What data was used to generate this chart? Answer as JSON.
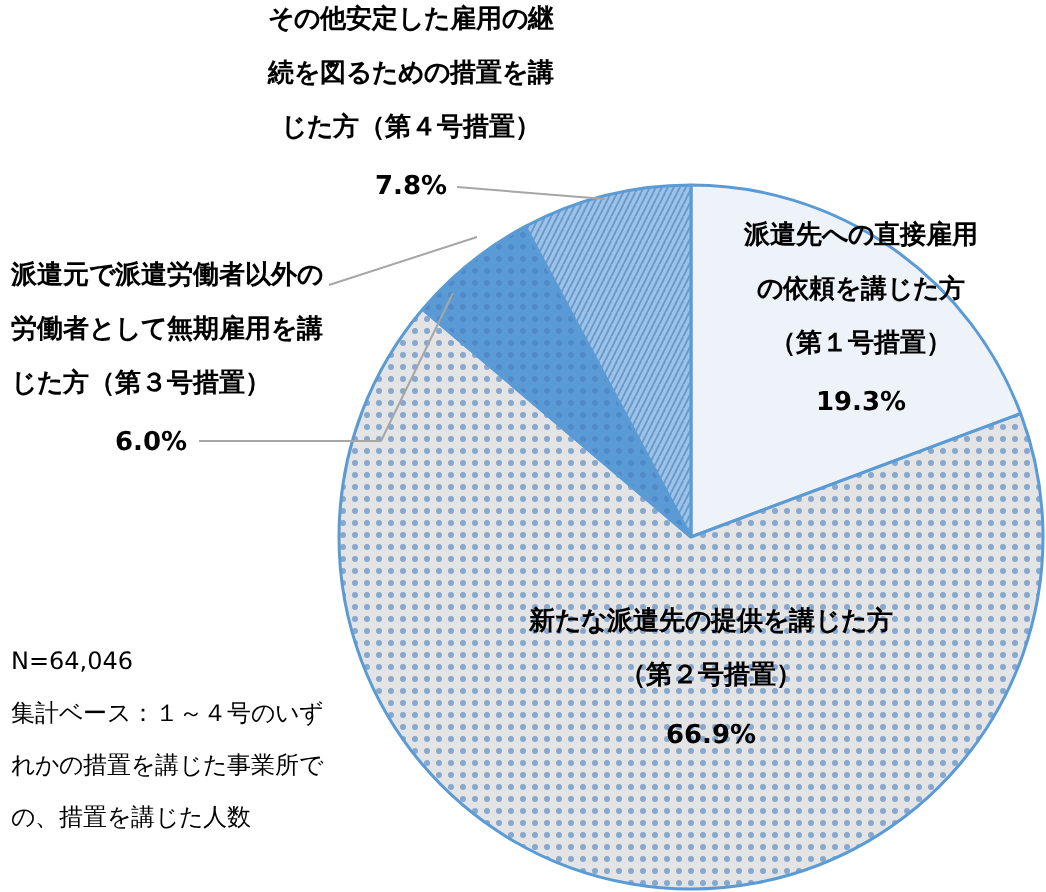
{
  "chart_data": {
    "type": "pie",
    "categories": [
      "派遣先への直接雇用の依頼を講じた方（第１号措置）",
      "新たな派遣先の提供を講じた方（第２号措置）",
      "派遣元で派遣労働者以外の労働者として無期雇用を講じた方（第３号措置）",
      "その他安定した雇用の継続を図るための措置を講じた方（第４号措置）"
    ],
    "values": [
      19.3,
      66.9,
      6.0,
      7.8
    ],
    "value_labels": [
      "19.3%",
      "66.9%",
      "6.0%",
      "7.8%"
    ],
    "colors": [
      "#eef3fa",
      "#e4e4e4",
      "#5b9bd5",
      "#9dc3e6"
    ],
    "annotations": [
      "N=64,046",
      "集計ベース：１～４号のいずれかの措置を講じた事業所での、措置を講じた人数"
    ]
  }
}
